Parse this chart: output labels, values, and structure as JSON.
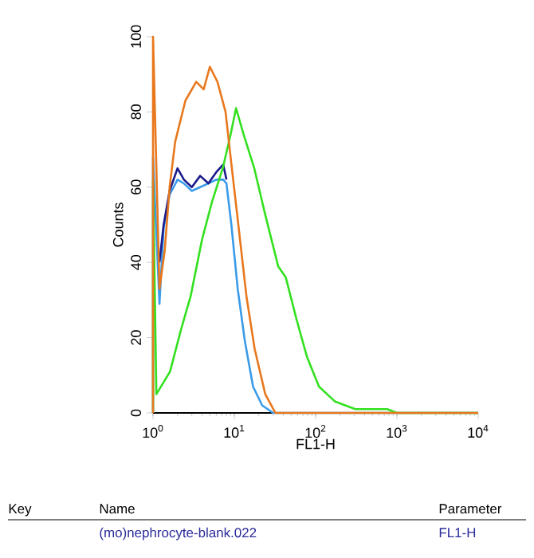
{
  "chart_data": {
    "type": "line",
    "xlabel": "FL1-H",
    "ylabel": "Counts",
    "log": "x",
    "xlim": [
      1,
      10000
    ],
    "ylim": [
      0,
      100
    ],
    "xticks": [
      {
        "value": 1,
        "label": "10$^{0}$"
      },
      {
        "value": 10,
        "label": "10$^{1}$"
      },
      {
        "value": 100,
        "label": "10$^{2}$"
      },
      {
        "value": 1000,
        "label": "10$^{3}$"
      },
      {
        "value": 10000,
        "label": "10$^{4}$"
      }
    ],
    "yticks": [
      0,
      20,
      40,
      60,
      80,
      100
    ],
    "grid": false,
    "marker": "none",
    "line_style": "solid",
    "series": [
      {
        "color": "#3a9be8",
        "x": [
          1,
          1,
          1.2,
          1.35,
          1.6,
          2.0,
          2.4,
          3.0,
          3.8,
          4.8,
          6.0,
          7.3,
          8.0,
          9.2,
          11.0,
          13.5,
          17,
          22,
          30,
          10000
        ],
        "values": [
          0,
          68,
          29,
          49,
          58,
          62,
          61,
          59,
          60,
          61,
          62,
          62,
          61,
          50,
          33,
          19,
          7,
          2,
          0,
          0
        ]
      },
      {
        "color": "#1a1a8c",
        "x": [
          1.2,
          1.35,
          1.6,
          2.0,
          2.4,
          3.0,
          3.8,
          4.8,
          6.0,
          7.3,
          8.0
        ],
        "values": [
          40,
          50,
          59,
          65,
          62,
          60,
          63,
          61,
          64,
          66,
          62
        ]
      },
      {
        "color": "#33e01f",
        "x": [
          1,
          1,
          1.1,
          1.62,
          2.2,
          2.9,
          4.0,
          5.3,
          7.2,
          9.0,
          10.5,
          13,
          17.6,
          23.8,
          34.6,
          43,
          58,
          78,
          110,
          174,
          309,
          760,
          1000,
          10000
        ],
        "values": [
          0,
          62,
          5,
          11,
          22,
          31,
          46,
          56,
          65,
          74,
          81,
          74,
          65,
          53,
          39,
          36,
          25,
          15,
          7,
          3,
          1,
          1,
          0,
          0
        ]
      },
      {
        "color": "#e8781e",
        "x": [
          1,
          1,
          1.2,
          1.39,
          1.6,
          1.87,
          2.5,
          3.4,
          4.2,
          5.0,
          6.2,
          7.8,
          9.0,
          11.2,
          14.1,
          17.8,
          24,
          32,
          10000
        ],
        "values": [
          0,
          100,
          33,
          43,
          60,
          72,
          83,
          88,
          86,
          92,
          88,
          80,
          68,
          50,
          31,
          17,
          5,
          0,
          0
        ]
      }
    ],
    "annotations": [
      "Key",
      "Name",
      "Parameter",
      "(mo)nephrocyte-blank.022",
      "FL1-H"
    ]
  }
}
